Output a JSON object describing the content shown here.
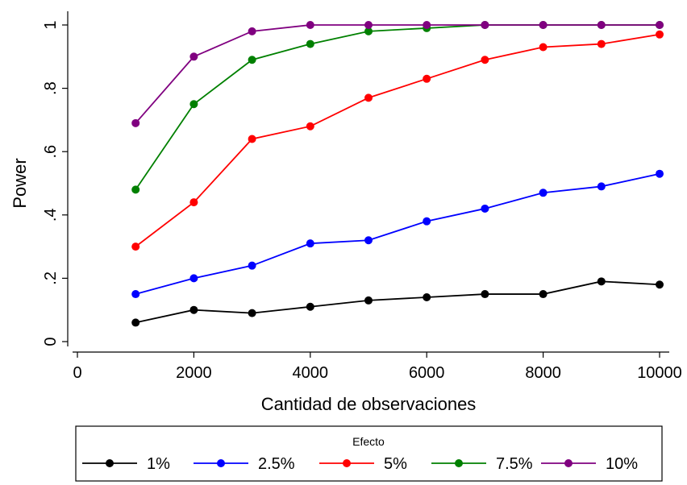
{
  "chart_data": {
    "type": "line",
    "xlabel": "Cantidad de observaciones",
    "ylabel": "Power",
    "xlim": [
      0,
      10000
    ],
    "ylim": [
      0,
      1
    ],
    "x_ticks": [
      0,
      2000,
      4000,
      6000,
      8000,
      10000
    ],
    "x_tick_labels": [
      "0",
      "2000",
      "4000",
      "6000",
      "8000",
      "10000"
    ],
    "y_ticks": [
      0,
      0.2,
      0.4,
      0.6,
      0.8,
      1
    ],
    "y_tick_labels": [
      "0",
      ".2",
      ".4",
      ".6",
      ".8",
      "1"
    ],
    "grid": false,
    "legend": {
      "title": "Efecto",
      "position": "bottom"
    },
    "x": [
      1000,
      2000,
      3000,
      4000,
      5000,
      6000,
      7000,
      8000,
      9000,
      10000
    ],
    "series": [
      {
        "name": "1%",
        "color": "#000000",
        "values": [
          0.06,
          0.1,
          0.09,
          0.11,
          0.13,
          0.14,
          0.15,
          0.15,
          0.19,
          0.18
        ]
      },
      {
        "name": "2.5%",
        "color": "#0000ff",
        "values": [
          0.15,
          0.2,
          0.24,
          0.31,
          0.32,
          0.38,
          0.42,
          0.47,
          0.49,
          0.53
        ]
      },
      {
        "name": "5%",
        "color": "#ff0000",
        "values": [
          0.3,
          0.44,
          0.64,
          0.68,
          0.77,
          0.83,
          0.89,
          0.93,
          0.94,
          0.97
        ]
      },
      {
        "name": "7.5%",
        "color": "#008000",
        "values": [
          0.48,
          0.75,
          0.89,
          0.94,
          0.98,
          0.99,
          1.0,
          1.0,
          1.0,
          1.0
        ]
      },
      {
        "name": "10%",
        "color": "#800080",
        "values": [
          0.69,
          0.9,
          0.98,
          1.0,
          1.0,
          1.0,
          1.0,
          1.0,
          1.0,
          1.0
        ]
      }
    ]
  }
}
